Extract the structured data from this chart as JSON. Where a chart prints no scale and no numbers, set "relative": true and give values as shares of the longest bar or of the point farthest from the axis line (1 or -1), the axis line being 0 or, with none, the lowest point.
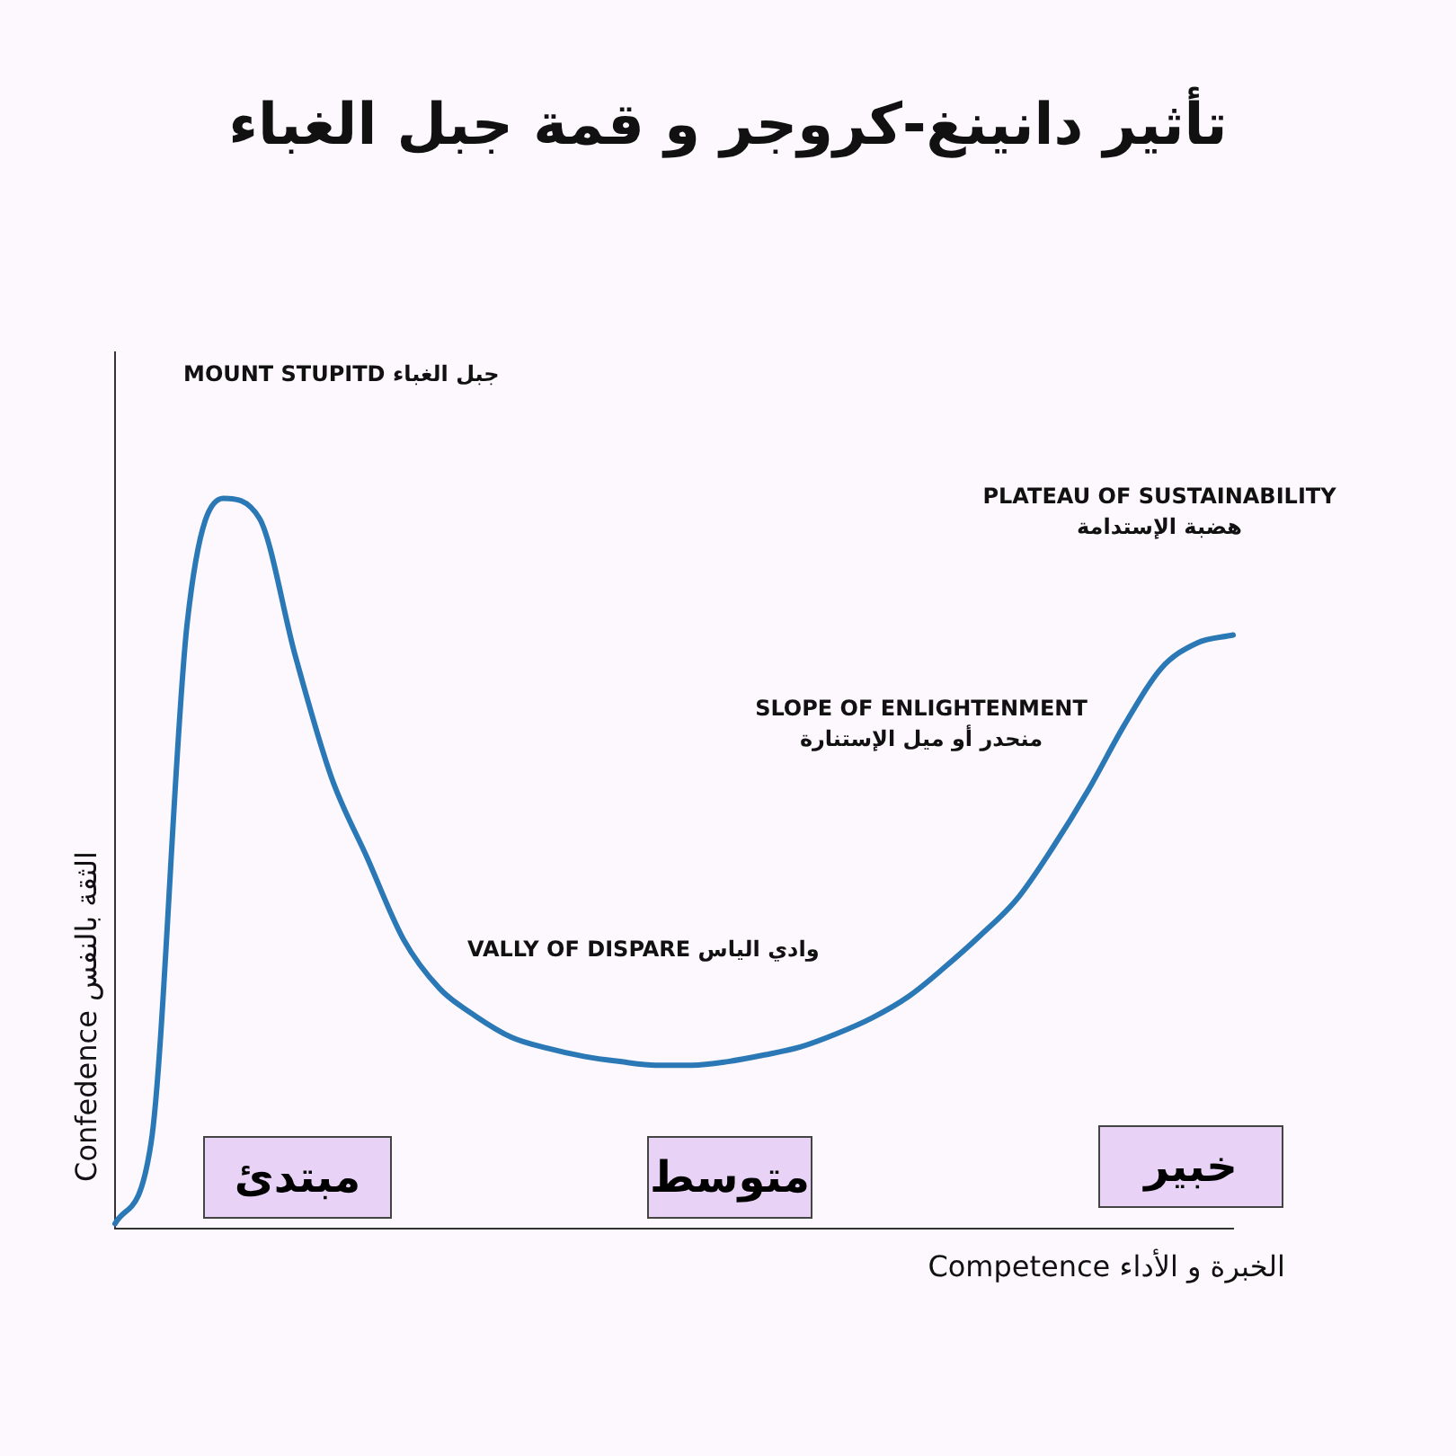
{
  "chart_data": {
    "type": "line",
    "title": "تأثير دانينغ-كروجر و قمة جبل الغباء",
    "xlabel": "الخبرة و الأداء Competence",
    "ylabel": "الثقة بالنفس Confedence",
    "relative": true,
    "grid": false,
    "legend": false,
    "marker": "none",
    "line_style": "solid",
    "categories": [
      null,
      null,
      null,
      null,
      null,
      null,
      null,
      null,
      null,
      null,
      null,
      null,
      null,
      null,
      null,
      null,
      null,
      null,
      null,
      null,
      null,
      null,
      null,
      null,
      null,
      null,
      null,
      null,
      null,
      null,
      null,
      null
    ],
    "series": [
      {
        "color": "#2a78b6",
        "values": [
          0.007,
          0.118,
          0.829,
          1,
          0.973,
          0.784,
          0.618,
          0.507,
          0.396,
          0.329,
          0.291,
          0.262,
          0.247,
          0.236,
          0.229,
          0.224,
          0.224,
          0.229,
          0.238,
          0.249,
          0.267,
          0.289,
          0.318,
          0.358,
          0.402,
          0.451,
          0.522,
          0.602,
          0.691,
          0.767,
          0.802,
          0.813
        ]
      }
    ],
    "annotations": [
      "جبل الغباء MOUNT STUPITD",
      "PLATEAU OF SUSTAINABILITY\nهضبة الإستدامة",
      "SLOPE OF ENLIGHTENMENT\nمنحدر أو ميل الإستنارة",
      "وادي الياس VALLY OF DISPARE",
      "مبتدئ",
      "متوسط",
      "خبير"
    ]
  }
}
